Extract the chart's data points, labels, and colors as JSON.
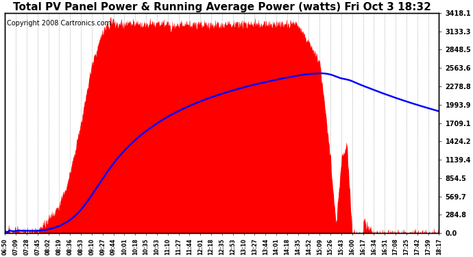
{
  "title": "Total PV Panel Power & Running Average Power (watts) Fri Oct 3 18:32",
  "copyright": "Copyright 2008 Cartronics.com",
  "y_ticks": [
    0.0,
    284.8,
    569.7,
    854.5,
    1139.4,
    1424.2,
    1709.1,
    1993.9,
    2278.8,
    2563.6,
    2848.5,
    3133.3,
    3418.1
  ],
  "y_max": 3418.1,
  "x_labels": [
    "06:50",
    "07:09",
    "07:28",
    "07:45",
    "08:02",
    "08:19",
    "08:36",
    "08:53",
    "09:10",
    "09:27",
    "09:44",
    "10:01",
    "10:18",
    "10:35",
    "10:53",
    "11:10",
    "11:27",
    "11:44",
    "12:01",
    "12:18",
    "12:35",
    "12:53",
    "13:10",
    "13:27",
    "13:44",
    "14:01",
    "14:18",
    "14:35",
    "14:52",
    "15:09",
    "15:26",
    "15:43",
    "16:00",
    "16:17",
    "16:34",
    "16:51",
    "17:08",
    "17:25",
    "17:42",
    "17:59",
    "18:17"
  ],
  "bg_color": "#ffffff",
  "fill_color": "#ff0000",
  "line_color": "#0000ff",
  "grid_color": "#aaaaaa",
  "title_fontsize": 11,
  "copyright_fontsize": 7,
  "figsize": [
    6.9,
    3.75
  ],
  "dpi": 100
}
